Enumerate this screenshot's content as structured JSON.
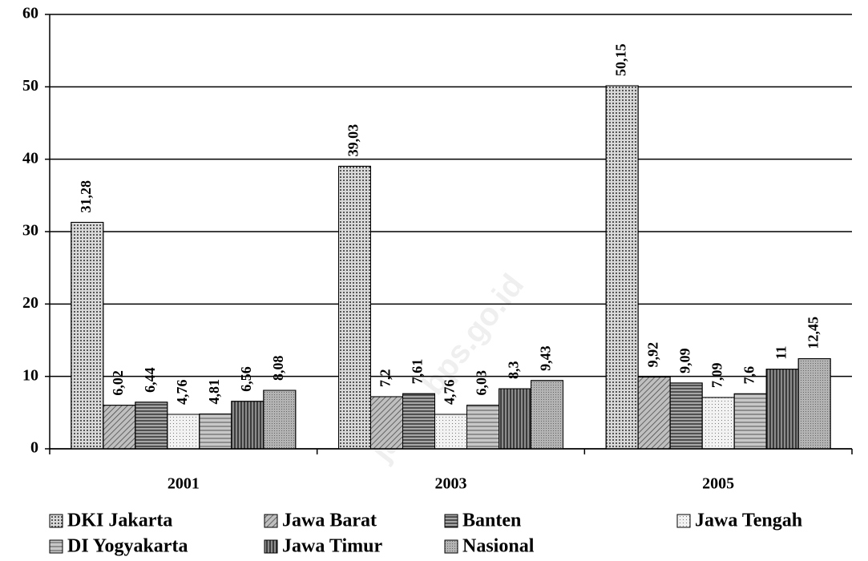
{
  "chart_data": {
    "type": "bar",
    "categories": [
      "2001",
      "2003",
      "2005"
    ],
    "series": [
      {
        "name": "DKI Jakarta",
        "color": "#d9d9d9",
        "values": [
          31.28,
          39.03,
          50.15
        ],
        "value_labels": [
          "31,28",
          "39,03",
          "50,15"
        ]
      },
      {
        "name": "Jawa Barat",
        "color": "#bfbfbf",
        "values": [
          6.02,
          7.2,
          9.92
        ],
        "value_labels": [
          "6,02",
          "7,2",
          "9,92"
        ]
      },
      {
        "name": "Banten",
        "color": "#a6a6a6",
        "values": [
          6.44,
          7.61,
          9.09
        ],
        "value_labels": [
          "6,44",
          "7,61",
          "9,09"
        ]
      },
      {
        "name": "Jawa Tengah",
        "color": "#f2f2f2",
        "values": [
          4.76,
          4.76,
          7.09
        ],
        "value_labels": [
          "4,76",
          "4,76",
          "7,09"
        ]
      },
      {
        "name": "DI Yogyakarta",
        "color": "#c8c8c8",
        "values": [
          4.81,
          6.03,
          7.6
        ],
        "value_labels": [
          "4,81",
          "6,03",
          "7,6"
        ]
      },
      {
        "name": "Jawa Timur",
        "color": "#8c8c8c",
        "values": [
          6.56,
          8.3,
          11
        ],
        "value_labels": [
          "6,56",
          "8,3",
          "11"
        ]
      },
      {
        "name": "Nasional",
        "color": "#b3b3b3",
        "values": [
          8.08,
          9.43,
          12.45
        ],
        "value_labels": [
          "8,08",
          "9,43",
          "12,45"
        ]
      }
    ],
    "ylim": [
      0,
      60
    ],
    "yticks": [
      0,
      10,
      20,
      30,
      40,
      50,
      60
    ],
    "grid": true,
    "legend": "bottom",
    "watermark": "jatim.bps.go.id"
  }
}
